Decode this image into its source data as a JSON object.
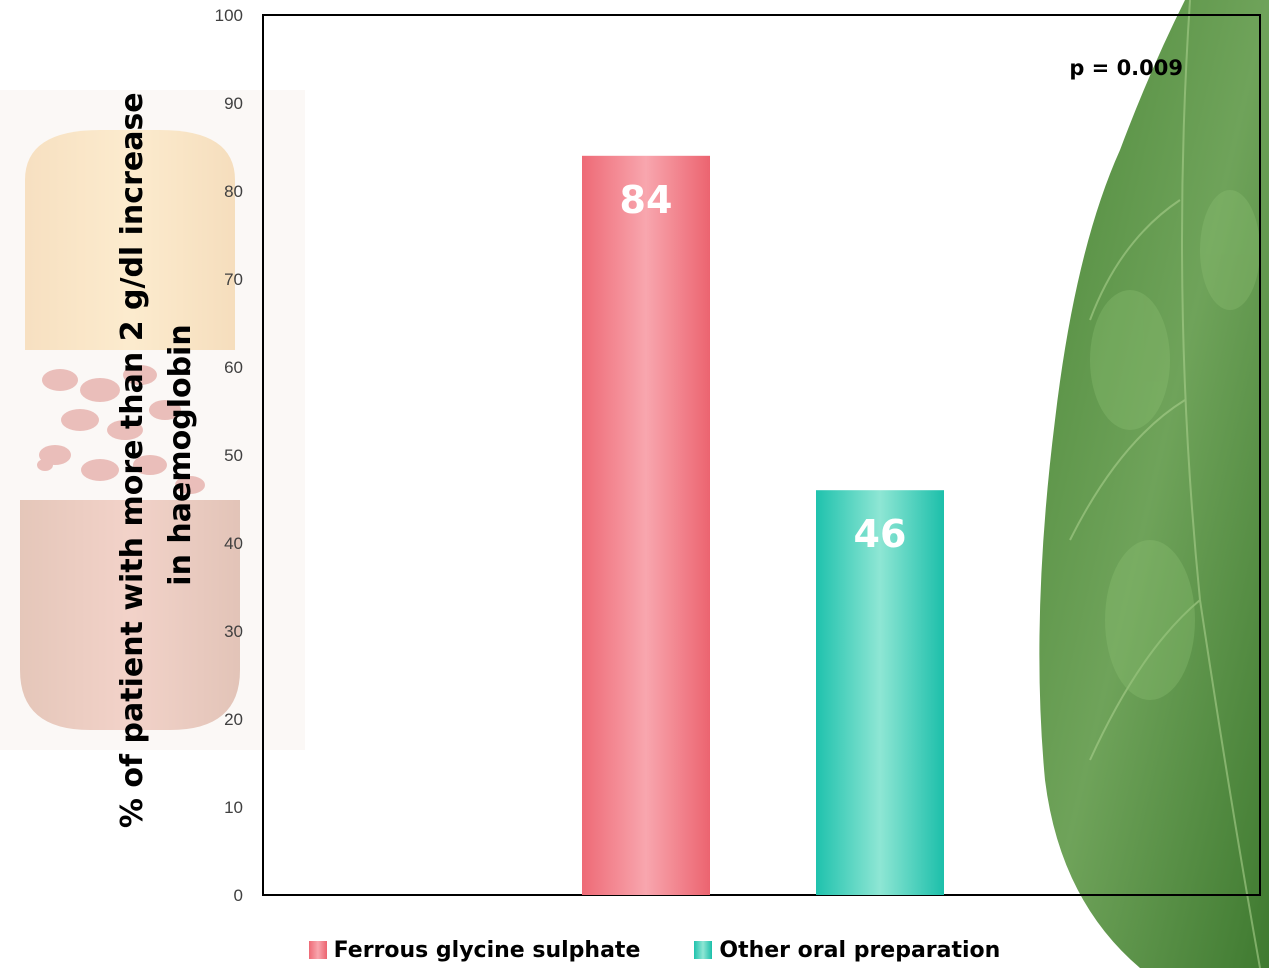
{
  "chart_data": {
    "type": "bar",
    "categories": [
      "Ferrous glycine sulphate",
      "Other oral preparation"
    ],
    "series": [
      {
        "name": "Ferrous glycine sulphate",
        "values": [
          84,
          null
        ],
        "color": "#f07480"
      },
      {
        "name": "Other oral preparation",
        "values": [
          null,
          46
        ],
        "color": "#2fc9b6"
      }
    ],
    "data_labels": [
      "84",
      "46"
    ],
    "title": "",
    "xlabel": "",
    "ylabel": "% of patient with more than 2 g/dl increase in haemoglobin",
    "ylabel_lines": [
      "% of patient with more than 2 g/dl increase",
      "in haemoglobin"
    ],
    "ylim": [
      0,
      100
    ],
    "yticks": [
      "0",
      "10",
      "20",
      "30",
      "40",
      "50",
      "60",
      "70",
      "80",
      "90",
      "100"
    ],
    "annotation": "p = 0.009",
    "grid": false,
    "legend_position": "bottom"
  },
  "legend": {
    "items": [
      {
        "label": "Ferrous glycine sulphate",
        "color": "#f07480"
      },
      {
        "label": "Other oral preparation",
        "color": "#2fc9b6"
      }
    ]
  },
  "background": {
    "left_image": "capsule-icon",
    "right_image": "leaf-icon"
  }
}
